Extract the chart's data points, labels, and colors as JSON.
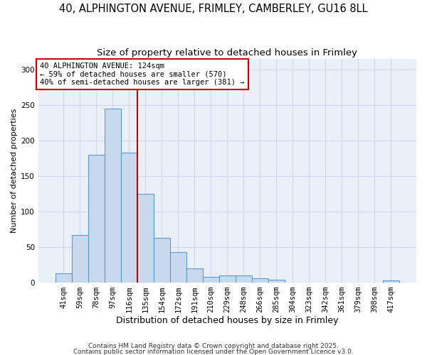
{
  "title_line1": "40, ALPHINGTON AVENUE, FRIMLEY, CAMBERLEY, GU16 8LL",
  "title_line2": "Size of property relative to detached houses in Frimley",
  "xlabel": "Distribution of detached houses by size in Frimley",
  "ylabel": "Number of detached properties",
  "categories": [
    "41sqm",
    "59sqm",
    "78sqm",
    "97sqm",
    "116sqm",
    "135sqm",
    "154sqm",
    "172sqm",
    "191sqm",
    "210sqm",
    "229sqm",
    "248sqm",
    "266sqm",
    "285sqm",
    "304sqm",
    "323sqm",
    "342sqm",
    "361sqm",
    "379sqm",
    "398sqm",
    "417sqm"
  ],
  "values": [
    13,
    67,
    180,
    245,
    183,
    125,
    63,
    43,
    20,
    8,
    10,
    10,
    6,
    4,
    0,
    0,
    0,
    0,
    0,
    0,
    3
  ],
  "bar_color": "#c9d9ed",
  "bar_edge_color": "#5b9bd5",
  "bar_linewidth": 0.8,
  "red_line_x": 4.5,
  "red_line_color": "#cc0000",
  "annotation_text": "40 ALPHINGTON AVENUE: 124sqm\n← 59% of detached houses are smaller (570)\n40% of semi-detached houses are larger (381) →",
  "annotation_box_color": "#ffffff",
  "annotation_box_edgecolor": "#cc0000",
  "annotation_fontsize": 7.5,
  "ylim": [
    0,
    315
  ],
  "yticks": [
    0,
    50,
    100,
    150,
    200,
    250,
    300
  ],
  "grid_color": "#d0d8e8",
  "bg_color": "#eaf0f8",
  "footer_line1": "Contains HM Land Registry data © Crown copyright and database right 2025.",
  "footer_line2": "Contains public sector information licensed under the Open Government Licence v3.0.",
  "title_fontsize": 10.5,
  "subtitle_fontsize": 9.5,
  "xlabel_fontsize": 9,
  "ylabel_fontsize": 8,
  "tick_fontsize": 7.5,
  "footer_fontsize": 6.5
}
